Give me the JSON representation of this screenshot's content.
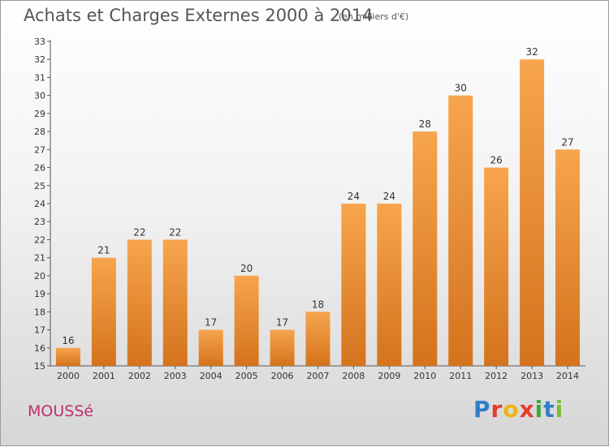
{
  "header": {
    "title": "Achats et Charges Externes 2000 à 2014",
    "subtitle": "(en milliers d'€)"
  },
  "footer": {
    "commune": "MOUSSé",
    "logo_text": "Proxiti"
  },
  "colors": {
    "bar_top": "#f7a54e",
    "bar_bottom": "#d4731c",
    "commune": "#c0306a",
    "logo_letters": [
      "#2f7fc8",
      "#e53b2b",
      "#f2b315",
      "#e53b2b",
      "#3aa83a",
      "#2f7fc8",
      "#7bbf2f"
    ]
  },
  "chart_data": {
    "type": "bar",
    "title": "Achats et Charges Externes 2000 à 2014",
    "unit": "(en milliers d'€)",
    "categories": [
      "2000",
      "2001",
      "2002",
      "2003",
      "2004",
      "2005",
      "2006",
      "2007",
      "2008",
      "2009",
      "2010",
      "2011",
      "2012",
      "2013",
      "2014"
    ],
    "values": [
      16,
      21,
      22,
      22,
      17,
      20,
      17,
      18,
      24,
      24,
      28,
      30,
      26,
      32,
      27
    ],
    "ylim": [
      15,
      33
    ],
    "yticks": [
      15,
      16,
      17,
      18,
      19,
      20,
      21,
      22,
      23,
      24,
      25,
      26,
      27,
      28,
      29,
      30,
      31,
      32,
      33
    ],
    "grid": false,
    "data_labels": true
  }
}
